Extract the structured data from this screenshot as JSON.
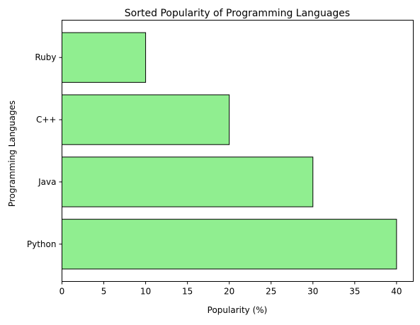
{
  "chart_data": {
    "type": "bar",
    "orientation": "horizontal",
    "title": "Sorted Popularity of Programming Languages",
    "xlabel": "Popularity (%)",
    "ylabel": "Programming Languages",
    "categories": [
      "Python",
      "Java",
      "C++",
      "Ruby"
    ],
    "values": [
      40,
      30,
      20,
      10
    ],
    "xlim": [
      0,
      42
    ],
    "xticks": [
      0,
      5,
      10,
      15,
      20,
      25,
      30,
      35,
      40
    ],
    "grid": false,
    "bar_color": "#90ee90",
    "bar_edge_color": "#000000"
  }
}
